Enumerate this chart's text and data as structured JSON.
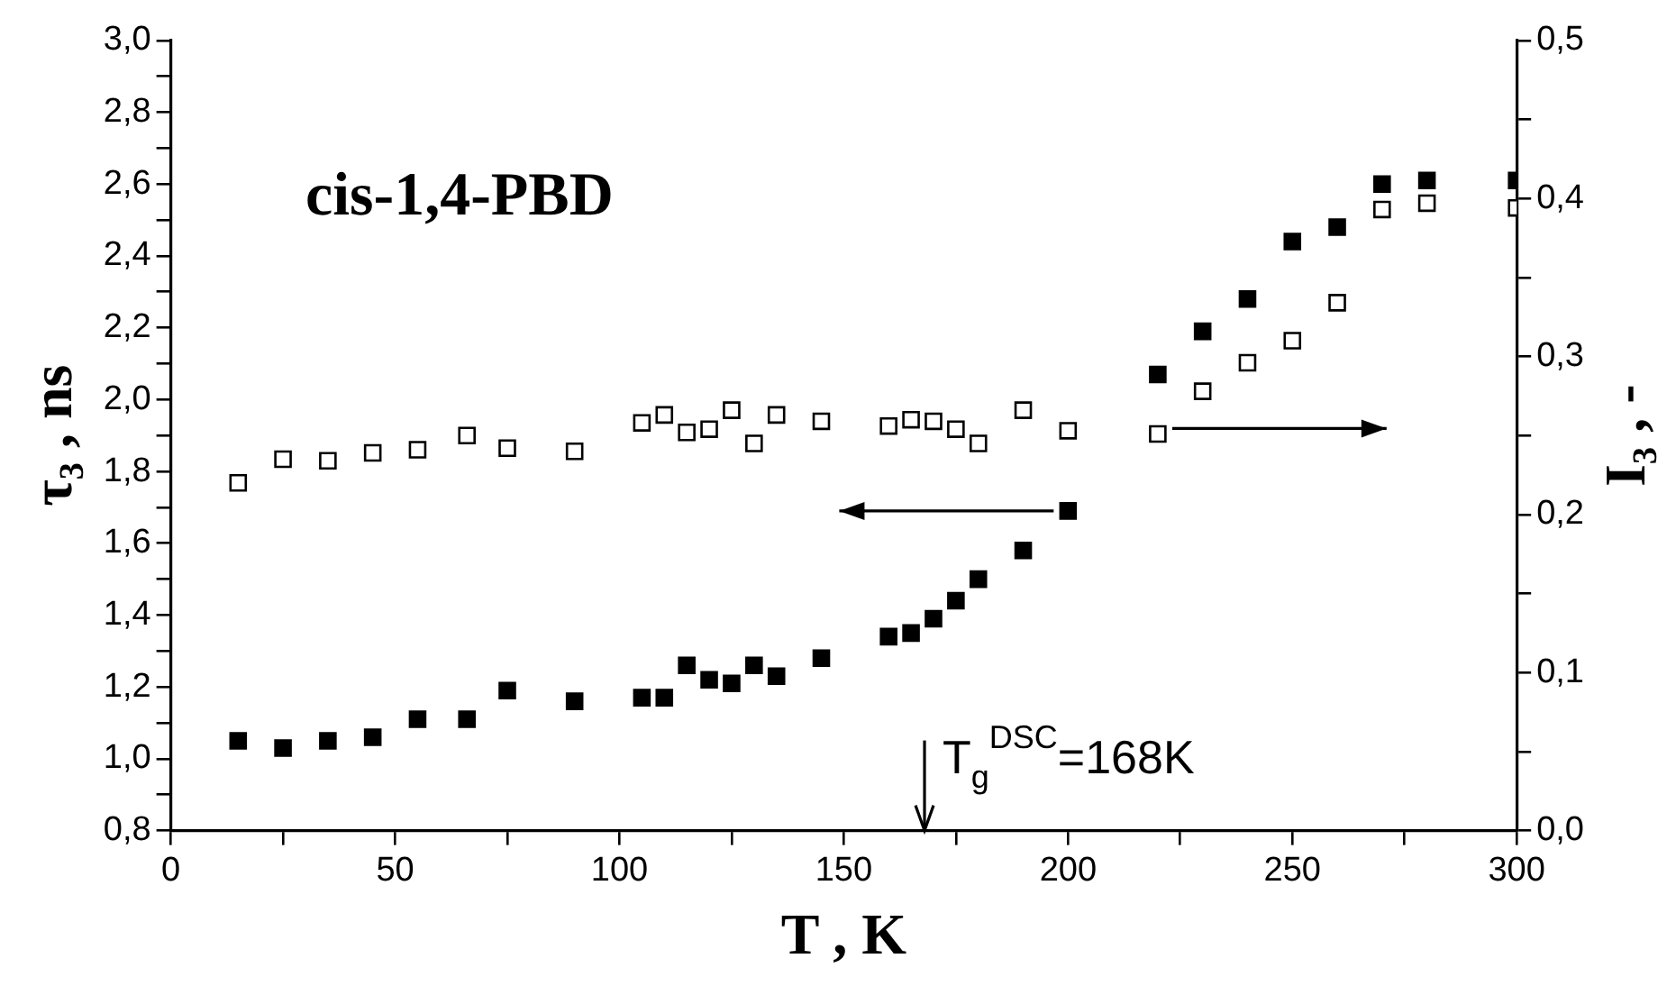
{
  "chart_data": {
    "type": "scatter",
    "xlabel": "T , K",
    "ylabel": "τ₃ , ns",
    "y2label": "I₃ , -",
    "annotations": [
      "cis-1,4-PBD"
    ],
    "ref_lines": [
      {
        "axis": "x",
        "value": 168,
        "label": "T$_{g}$$^{DSC}$=168K"
      }
    ],
    "marker": "square",
    "grid": false,
    "legend": false,
    "xlim": [
      0,
      300
    ],
    "xticks": [
      0,
      {
        "value": 25,
        "label": null
      },
      50,
      {
        "value": 75,
        "label": null
      },
      100,
      {
        "value": 125,
        "label": null
      },
      150,
      {
        "value": 175,
        "label": null
      },
      200,
      {
        "value": 225,
        "label": null
      },
      250,
      {
        "value": 275,
        "label": null
      },
      300
    ],
    "ylim": [
      0.8,
      3.0
    ],
    "yticks": [
      {
        "value": 0.8,
        "label": "0,8"
      },
      {
        "value": 0.9,
        "label": null
      },
      {
        "value": 1.0,
        "label": "1,0"
      },
      {
        "value": 1.1,
        "label": null
      },
      {
        "value": 1.2,
        "label": "1,2"
      },
      {
        "value": 1.3,
        "label": null
      },
      {
        "value": 1.4,
        "label": "1,4"
      },
      {
        "value": 1.5,
        "label": null
      },
      {
        "value": 1.6,
        "label": "1,6"
      },
      {
        "value": 1.7,
        "label": null
      },
      {
        "value": 1.8,
        "label": "1,8"
      },
      {
        "value": 1.9,
        "label": null
      },
      {
        "value": 2.0,
        "label": "2,0"
      },
      {
        "value": 2.1,
        "label": null
      },
      {
        "value": 2.2,
        "label": "2,2"
      },
      {
        "value": 2.3,
        "label": null
      },
      {
        "value": 2.4,
        "label": "2,4"
      },
      {
        "value": 2.5,
        "label": null
      },
      {
        "value": 2.6,
        "label": "2,6"
      },
      {
        "value": 2.7,
        "label": null
      },
      {
        "value": 2.8,
        "label": "2,8"
      },
      {
        "value": 2.9,
        "label": null
      },
      {
        "value": 3.0,
        "label": "3,0"
      }
    ],
    "y2lim": [
      0,
      0.5
    ],
    "y2ticks": [
      {
        "value": 0,
        "label": "0,0"
      },
      {
        "value": 0.05,
        "label": null
      },
      {
        "value": 0.1,
        "label": "0,1"
      },
      {
        "value": 0.15,
        "label": null
      },
      {
        "value": 0.2,
        "label": "0,2"
      },
      {
        "value": 0.25,
        "label": null
      },
      {
        "value": 0.3,
        "label": "0,3"
      },
      {
        "value": 0.35,
        "label": null
      },
      {
        "value": 0.4,
        "label": "0,4"
      },
      {
        "value": 0.45,
        "label": null
      },
      {
        "value": 0.5,
        "label": "0,5"
      }
    ],
    "series": [
      {
        "color": "#000000",
        "x": [
          15,
          25,
          35,
          45,
          55,
          66,
          75,
          90,
          105,
          110,
          115,
          120,
          125,
          130,
          135,
          145,
          160,
          165,
          170,
          175,
          180,
          190,
          200,
          220,
          230,
          240,
          250,
          260,
          270,
          280,
          300
        ],
        "values": [
          1.05,
          1.03,
          1.05,
          1.06,
          1.11,
          1.11,
          1.19,
          1.16,
          1.17,
          1.17,
          1.26,
          1.22,
          1.21,
          1.26,
          1.23,
          1.28,
          1.34,
          1.35,
          1.39,
          1.44,
          1.5,
          1.58,
          1.69,
          2.07,
          2.19,
          2.28,
          2.44,
          2.48,
          2.6,
          2.61,
          2.61
        ]
      },
      {
        "color": "#000000",
        "axis": "y2",
        "x": [
          15,
          25,
          35,
          45,
          55,
          66,
          75,
          90,
          105,
          110,
          115,
          120,
          125,
          130,
          135,
          145,
          160,
          165,
          170,
          175,
          180,
          190,
          200,
          220,
          230,
          240,
          250,
          260,
          270,
          280,
          300
        ],
        "values": [
          0.22,
          0.235,
          0.234,
          0.239,
          0.241,
          0.25,
          0.242,
          0.24,
          0.258,
          0.263,
          0.252,
          0.254,
          0.266,
          0.245,
          0.263,
          0.259,
          0.256,
          0.26,
          0.259,
          0.254,
          0.245,
          0.266,
          0.253,
          0.251,
          0.278,
          0.296,
          0.31,
          0.334,
          0.393,
          0.397,
          0.394
        ]
      }
    ]
  }
}
